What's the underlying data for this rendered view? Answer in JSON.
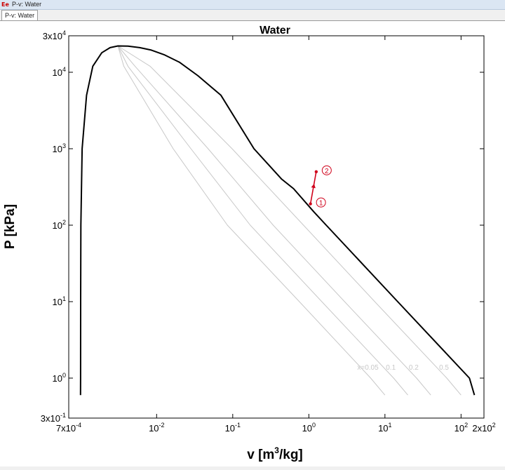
{
  "window": {
    "title": "P-v: Water",
    "icon": "ees-app-icon"
  },
  "tabs": [
    {
      "label": "P-v: Water",
      "active": true
    }
  ],
  "chart_data": {
    "type": "line",
    "title": "Water",
    "xlabel": "v [m3/kg]",
    "xlabel_base": "v [m",
    "xlabel_sup": "3",
    "xlabel_tail": "/kg]",
    "ylabel": "P [kPa]",
    "xscale": "log",
    "yscale": "log",
    "xlim": [
      0.0007,
      200
    ],
    "ylim": [
      0.3,
      30000
    ],
    "x_ticks": [
      {
        "value": 0.0007,
        "mant": "7x10",
        "exp": "-4"
      },
      {
        "value": 0.01,
        "mant": "10",
        "exp": "-2"
      },
      {
        "value": 0.1,
        "mant": "10",
        "exp": "-1"
      },
      {
        "value": 1,
        "mant": "10",
        "exp": "0"
      },
      {
        "value": 10,
        "mant": "10",
        "exp": "1"
      },
      {
        "value": 100,
        "mant": "10",
        "exp": "2"
      },
      {
        "value": 200,
        "mant": "2x10",
        "exp": "2"
      }
    ],
    "y_ticks": [
      {
        "value": 0.3,
        "mant": "3x10",
        "exp": "-1"
      },
      {
        "value": 1,
        "mant": "10",
        "exp": "0"
      },
      {
        "value": 10,
        "mant": "10",
        "exp": "1"
      },
      {
        "value": 100,
        "mant": "10",
        "exp": "2"
      },
      {
        "value": 1000,
        "mant": "10",
        "exp": "3"
      },
      {
        "value": 10000,
        "mant": "10",
        "exp": "4"
      },
      {
        "value": 30000,
        "mant": "3x10",
        "exp": "4"
      }
    ],
    "grid": false,
    "series": [
      {
        "role": "saturation-dome",
        "color": "#000000",
        "points": [
          [
            0.001,
            0.6
          ],
          [
            0.001002,
            1
          ],
          [
            0.001005,
            10
          ],
          [
            0.00101,
            100
          ],
          [
            0.00105,
            1000
          ],
          [
            0.0012,
            5000
          ],
          [
            0.00145,
            12000
          ],
          [
            0.0019,
            18000
          ],
          [
            0.00245,
            21000
          ],
          [
            0.0031,
            22064
          ],
          [
            0.0042,
            22000
          ],
          [
            0.006,
            21000
          ],
          [
            0.0085,
            19500
          ],
          [
            0.0125,
            17000
          ],
          [
            0.02,
            13500
          ],
          [
            0.035,
            9000
          ],
          [
            0.07,
            5000
          ],
          [
            0.19,
            1000
          ],
          [
            0.44,
            400
          ],
          [
            0.63,
            300
          ],
          [
            1.16,
            150
          ],
          [
            1.69,
            100
          ],
          [
            14.7,
            10
          ],
          [
            129,
            1
          ],
          [
            150,
            0.6
          ]
        ]
      },
      {
        "name": "x=0.05",
        "label": "x=0.05",
        "color": "#c8c8c8",
        "points": [
          [
            0.0031,
            22064
          ],
          [
            0.0037,
            12000
          ],
          [
            0.0165,
            1000
          ],
          [
            0.085,
            100
          ],
          [
            0.75,
            10
          ],
          [
            6.5,
            1
          ],
          [
            10,
            0.6
          ]
        ]
      },
      {
        "name": "0.1",
        "label": "0.1",
        "color": "#c8c8c8",
        "points": [
          [
            0.0031,
            22064
          ],
          [
            0.0042,
            12000
          ],
          [
            0.0282,
            1000
          ],
          [
            0.17,
            100
          ],
          [
            1.48,
            10
          ],
          [
            13,
            1
          ],
          [
            20,
            0.6
          ]
        ]
      },
      {
        "name": "0.2",
        "label": "0.2",
        "color": "#c8c8c8",
        "points": [
          [
            0.0031,
            22064
          ],
          [
            0.0052,
            12000
          ],
          [
            0.0475,
            1000
          ],
          [
            0.34,
            100
          ],
          [
            2.95,
            10
          ],
          [
            26,
            1
          ],
          [
            40,
            0.6
          ]
        ]
      },
      {
        "name": "0.5",
        "label": "0.5",
        "color": "#c8c8c8",
        "points": [
          [
            0.0031,
            22064
          ],
          [
            0.0082,
            12000
          ],
          [
            0.098,
            1000
          ],
          [
            0.85,
            100
          ],
          [
            7.35,
            10
          ],
          [
            65,
            1
          ],
          [
            100,
            0.6
          ]
        ]
      }
    ],
    "states": [
      {
        "label": "1",
        "v": 1.05,
        "P": 190,
        "color": "#d0021b"
      },
      {
        "label": "2",
        "v": 1.25,
        "P": 500,
        "color": "#d0021b"
      }
    ],
    "process_color": "#d0021b"
  }
}
